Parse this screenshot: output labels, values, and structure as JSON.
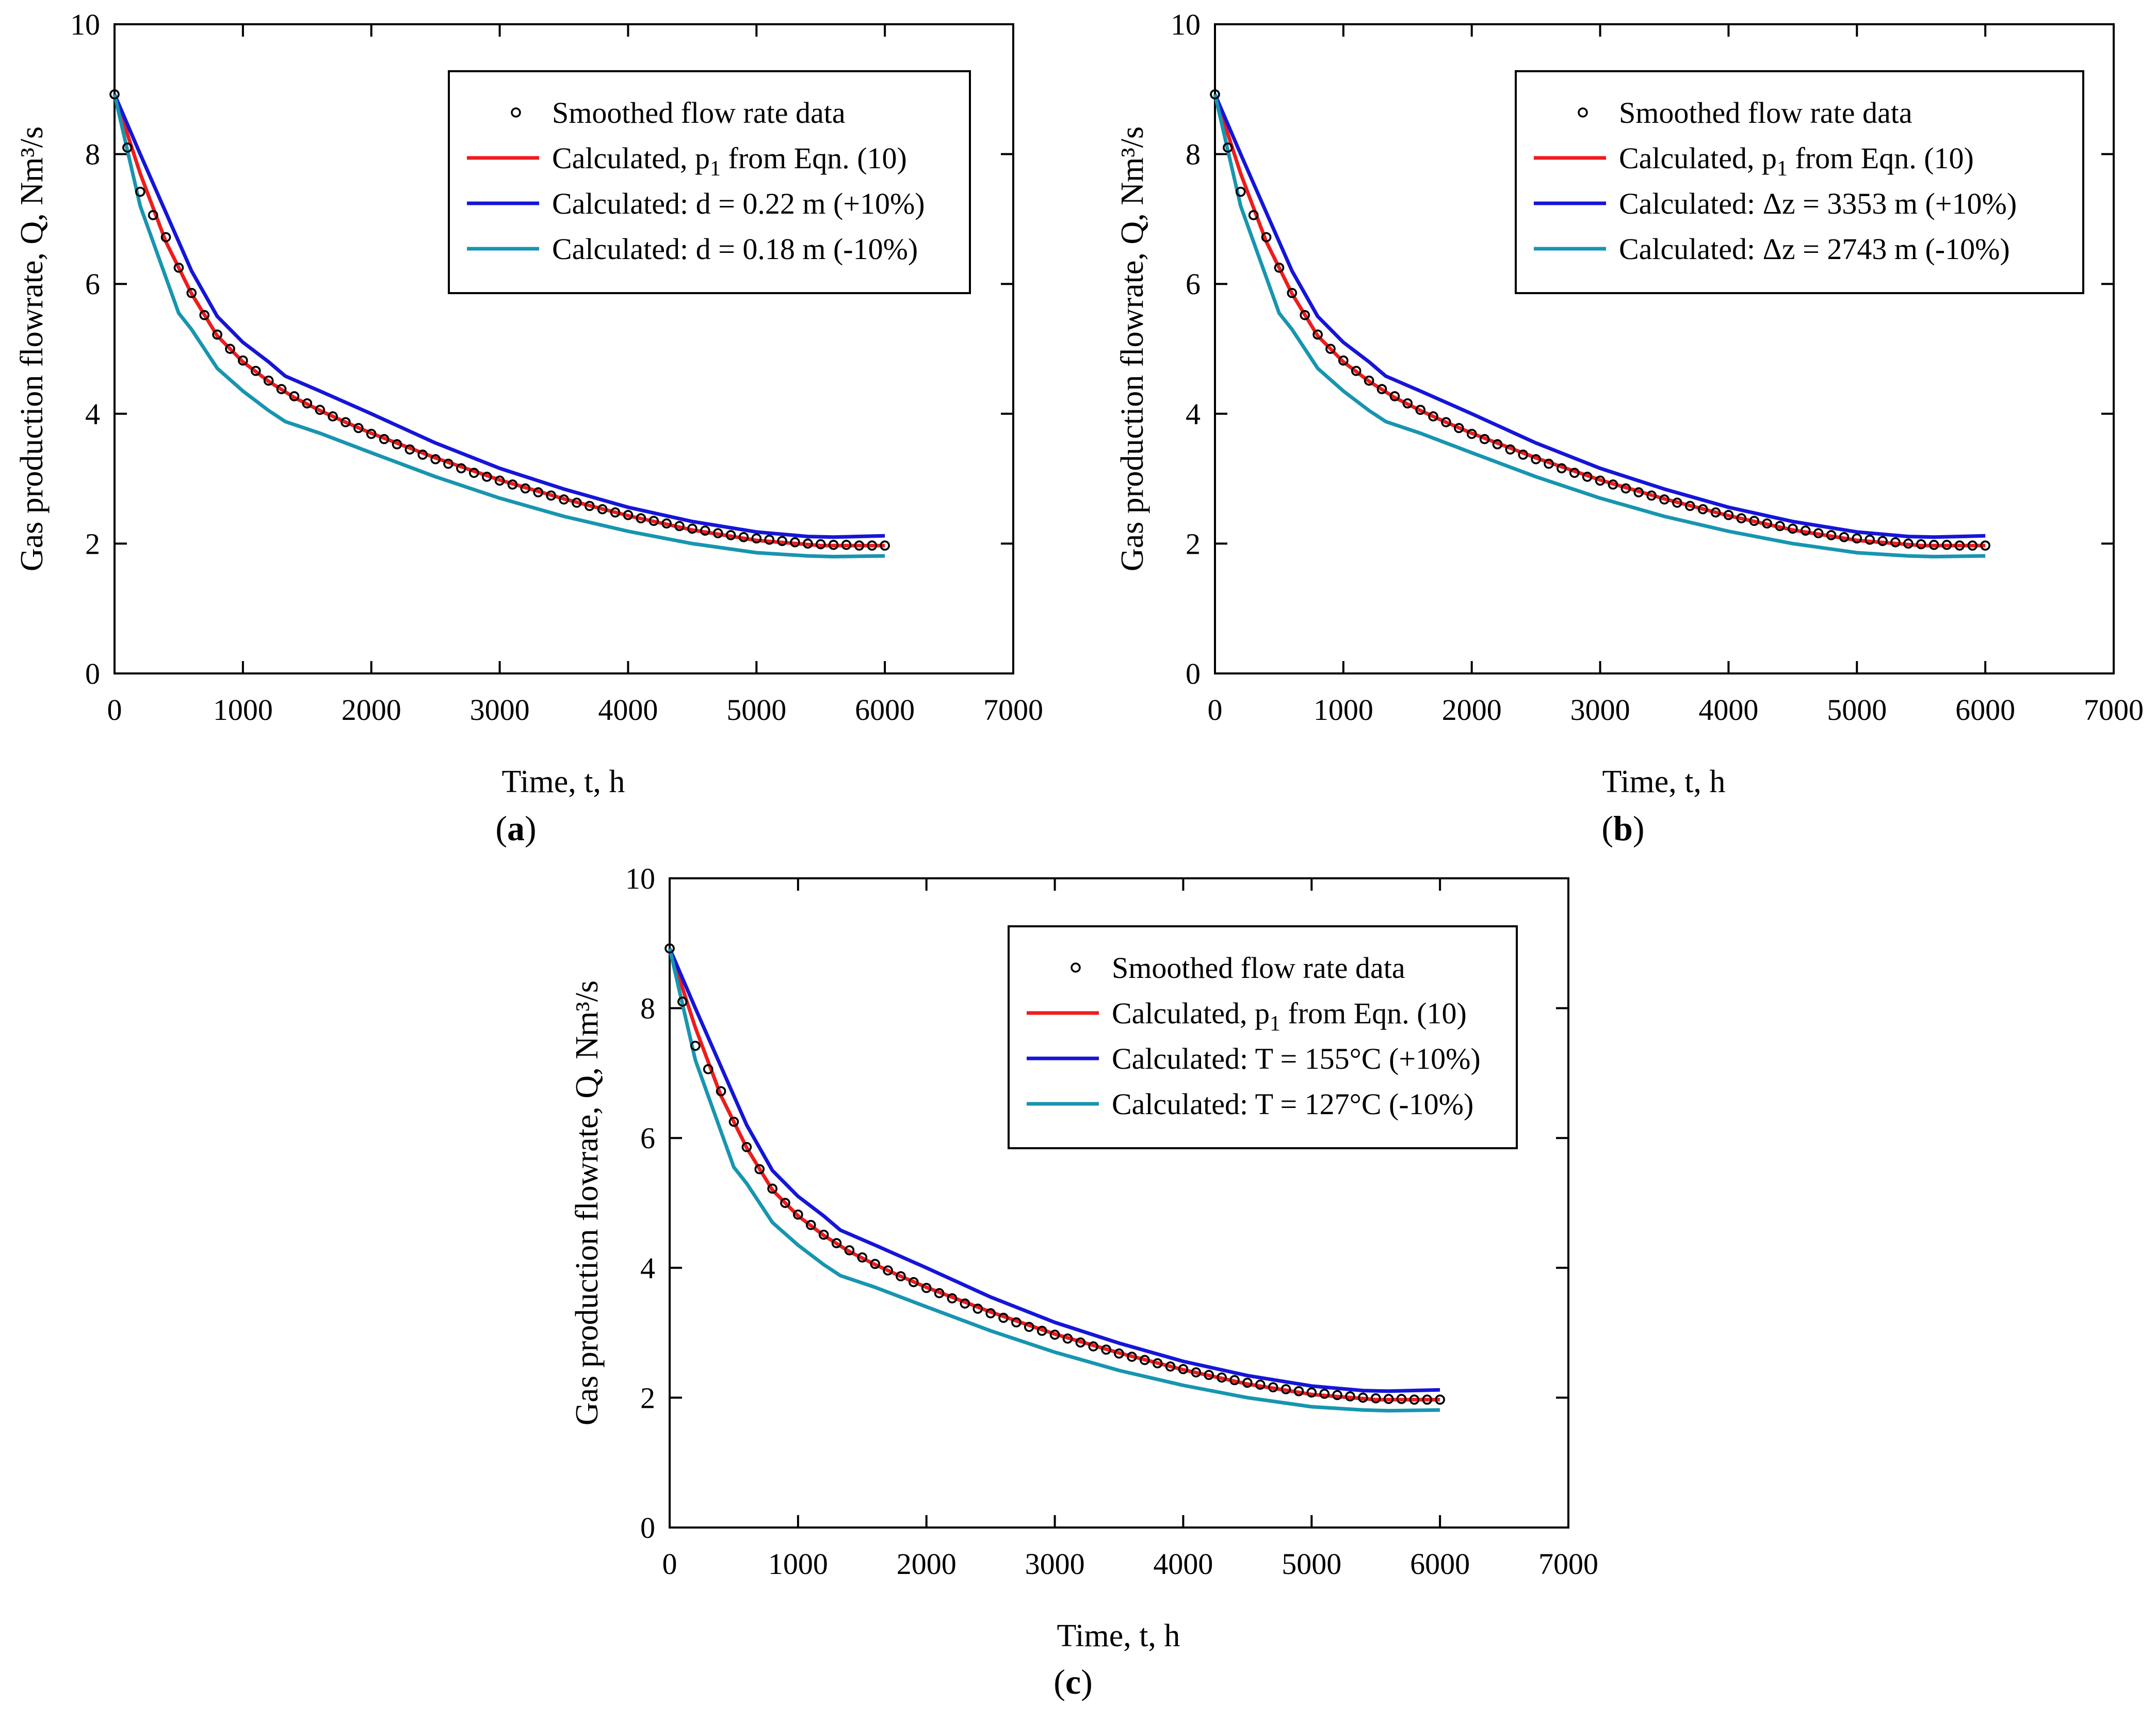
{
  "colors": {
    "data_marker": "#000000",
    "base": "#ee1c1c",
    "plus": "#1515d8",
    "minus": "#1795b0"
  },
  "panels": [
    {
      "id": "a",
      "label_text": "a"
    },
    {
      "id": "b",
      "label_text": "b"
    },
    {
      "id": "c",
      "label_text": "c"
    }
  ],
  "chart_data": [
    {
      "panel": "a",
      "type": "line",
      "xlabel": "Time, t, h",
      "ylabel": "Gas production flowrate, Q, Nm³/s",
      "xlim": [
        0,
        7000
      ],
      "ylim": [
        0,
        10
      ],
      "xticks": [
        0,
        1000,
        2000,
        3000,
        4000,
        5000,
        6000,
        7000
      ],
      "yticks": [
        0,
        2,
        4,
        6,
        8,
        10
      ],
      "legend_position": "top-right",
      "series": [
        {
          "name": "Smoothed flow rate data",
          "style": "markers",
          "color_key": "data_marker",
          "x": [
            0,
            100,
            200,
            300,
            400,
            500,
            600,
            700,
            800,
            900,
            1000,
            1100,
            1200,
            1300,
            1400,
            1500,
            1600,
            1700,
            1800,
            1900,
            2000,
            2100,
            2200,
            2300,
            2400,
            2500,
            2600,
            2700,
            2800,
            2900,
            3000,
            3100,
            3200,
            3300,
            3400,
            3500,
            3600,
            3700,
            3800,
            3900,
            4000,
            4100,
            4200,
            4300,
            4400,
            4500,
            4600,
            4700,
            4800,
            4900,
            5000,
            5100,
            5200,
            5300,
            5400,
            5500,
            5600,
            5700,
            5800,
            5900,
            6000
          ],
          "y": [
            8.92,
            8.1,
            7.42,
            7.06,
            6.72,
            6.25,
            5.86,
            5.52,
            5.22,
            5.0,
            4.82,
            4.66,
            4.51,
            4.38,
            4.27,
            4.16,
            4.06,
            3.96,
            3.87,
            3.78,
            3.69,
            3.61,
            3.53,
            3.45,
            3.37,
            3.3,
            3.23,
            3.16,
            3.09,
            3.03,
            2.97,
            2.91,
            2.85,
            2.79,
            2.74,
            2.68,
            2.63,
            2.58,
            2.53,
            2.48,
            2.44,
            2.39,
            2.35,
            2.31,
            2.27,
            2.23,
            2.2,
            2.16,
            2.13,
            2.1,
            2.08,
            2.06,
            2.04,
            2.02,
            2.0,
            1.99,
            1.98,
            1.98,
            1.97,
            1.97,
            1.97
          ]
        },
        {
          "name": "Calculated, p1 from Eqn. (10)",
          "legend_main": "Calculated, p",
          "legend_sub": "1",
          "legend_tail": " from Eqn. (10)",
          "style": "line",
          "color_key": "base",
          "x": [
            0,
            200,
            400,
            600,
            800,
            1000,
            1200,
            1400,
            1600,
            1800,
            2000,
            2500,
            3000,
            3500,
            4000,
            4500,
            5000,
            5500,
            6000
          ],
          "y": [
            8.92,
            7.7,
            6.65,
            5.85,
            5.2,
            4.8,
            4.5,
            4.25,
            4.05,
            3.87,
            3.7,
            3.32,
            2.98,
            2.69,
            2.43,
            2.21,
            2.05,
            1.97,
            1.97
          ]
        },
        {
          "name": "Calculated: d = 0.22 m (+10%)",
          "style": "line",
          "color_key": "plus",
          "x": [
            0,
            200,
            400,
            600,
            800,
            1000,
            1200,
            1330,
            1600,
            2000,
            2500,
            3000,
            3500,
            4000,
            4500,
            5000,
            5400,
            5600,
            6000
          ],
          "y": [
            8.92,
            8.0,
            7.1,
            6.2,
            5.5,
            5.1,
            4.8,
            4.58,
            4.35,
            4.0,
            3.55,
            3.16,
            2.84,
            2.56,
            2.34,
            2.18,
            2.11,
            2.1,
            2.12
          ]
        },
        {
          "name": "Calculated:  d = 0.18 m (-10%)",
          "style": "line",
          "color_key": "minus",
          "x": [
            0,
            200,
            400,
            500,
            600,
            700,
            800,
            1000,
            1200,
            1330,
            1600,
            2000,
            2500,
            3000,
            3500,
            4000,
            4500,
            5000,
            5400,
            5600,
            6000
          ],
          "y": [
            8.92,
            7.2,
            6.1,
            5.55,
            5.3,
            5.0,
            4.7,
            4.35,
            4.05,
            3.88,
            3.7,
            3.4,
            3.03,
            2.7,
            2.42,
            2.19,
            2.0,
            1.86,
            1.81,
            1.8,
            1.81
          ]
        }
      ]
    },
    {
      "panel": "b",
      "type": "line",
      "xlabel": "Time, t, h",
      "ylabel": "Gas production flowrate, Q, Nm³/s",
      "xlim": [
        0,
        7000
      ],
      "ylim": [
        0,
        10
      ],
      "xticks": [
        0,
        1000,
        2000,
        3000,
        4000,
        5000,
        6000,
        7000
      ],
      "yticks": [
        0,
        2,
        4,
        6,
        8,
        10
      ],
      "legend_position": "top-right",
      "series": [
        {
          "name": "Smoothed flow rate data",
          "style": "markers",
          "color_key": "data_marker",
          "x": [
            0,
            100,
            200,
            300,
            400,
            500,
            600,
            700,
            800,
            900,
            1000,
            1100,
            1200,
            1300,
            1400,
            1500,
            1600,
            1700,
            1800,
            1900,
            2000,
            2100,
            2200,
            2300,
            2400,
            2500,
            2600,
            2700,
            2800,
            2900,
            3000,
            3100,
            3200,
            3300,
            3400,
            3500,
            3600,
            3700,
            3800,
            3900,
            4000,
            4100,
            4200,
            4300,
            4400,
            4500,
            4600,
            4700,
            4800,
            4900,
            5000,
            5100,
            5200,
            5300,
            5400,
            5500,
            5600,
            5700,
            5800,
            5900,
            6000
          ],
          "y": [
            8.92,
            8.1,
            7.42,
            7.06,
            6.72,
            6.25,
            5.86,
            5.52,
            5.22,
            5.0,
            4.82,
            4.66,
            4.51,
            4.38,
            4.27,
            4.16,
            4.06,
            3.96,
            3.87,
            3.78,
            3.69,
            3.61,
            3.53,
            3.45,
            3.37,
            3.3,
            3.23,
            3.16,
            3.09,
            3.03,
            2.97,
            2.91,
            2.85,
            2.79,
            2.74,
            2.68,
            2.63,
            2.58,
            2.53,
            2.48,
            2.44,
            2.39,
            2.35,
            2.31,
            2.27,
            2.23,
            2.2,
            2.16,
            2.13,
            2.1,
            2.08,
            2.06,
            2.04,
            2.02,
            2.0,
            1.99,
            1.98,
            1.98,
            1.97,
            1.97,
            1.97
          ]
        },
        {
          "name": "Calculated, p1 from Eqn. (10)",
          "legend_main": "Calculated, p",
          "legend_sub": "1",
          "legend_tail": " from Eqn. (10)",
          "style": "line",
          "color_key": "base",
          "x": [
            0,
            200,
            400,
            600,
            800,
            1000,
            1200,
            1400,
            1600,
            1800,
            2000,
            2500,
            3000,
            3500,
            4000,
            4500,
            5000,
            5500,
            6000
          ],
          "y": [
            8.92,
            7.7,
            6.65,
            5.85,
            5.2,
            4.8,
            4.5,
            4.25,
            4.05,
            3.87,
            3.7,
            3.32,
            2.98,
            2.69,
            2.43,
            2.21,
            2.05,
            1.97,
            1.97
          ]
        },
        {
          "name": "Calculated:  Δz = 3353 m (+10%)",
          "style": "line",
          "color_key": "plus",
          "x": [
            0,
            200,
            400,
            600,
            800,
            1000,
            1200,
            1330,
            1600,
            2000,
            2500,
            3000,
            3500,
            4000,
            4500,
            5000,
            5400,
            5600,
            6000
          ],
          "y": [
            8.92,
            8.0,
            7.1,
            6.2,
            5.5,
            5.1,
            4.8,
            4.58,
            4.35,
            4.0,
            3.55,
            3.16,
            2.84,
            2.56,
            2.34,
            2.18,
            2.11,
            2.1,
            2.12
          ]
        },
        {
          "name": "Calculated:   Δz = 2743 m (-10%)",
          "style": "line",
          "color_key": "minus",
          "x": [
            0,
            200,
            400,
            500,
            600,
            700,
            800,
            1000,
            1200,
            1330,
            1600,
            2000,
            2500,
            3000,
            3500,
            4000,
            4500,
            5000,
            5400,
            5600,
            6000
          ],
          "y": [
            8.92,
            7.2,
            6.1,
            5.55,
            5.3,
            5.0,
            4.7,
            4.35,
            4.05,
            3.88,
            3.7,
            3.4,
            3.03,
            2.7,
            2.42,
            2.19,
            2.0,
            1.86,
            1.81,
            1.8,
            1.81
          ]
        }
      ]
    },
    {
      "panel": "c",
      "type": "line",
      "xlabel": "Time, t, h",
      "ylabel": "Gas production flowrate, Q, Nm³/s",
      "xlim": [
        0,
        7000
      ],
      "ylim": [
        0,
        10
      ],
      "xticks": [
        0,
        1000,
        2000,
        3000,
        4000,
        5000,
        6000,
        7000
      ],
      "yticks": [
        0,
        2,
        4,
        6,
        8,
        10
      ],
      "legend_position": "top-right",
      "series": [
        {
          "name": "Smoothed flow rate data",
          "style": "markers",
          "color_key": "data_marker",
          "x": [
            0,
            100,
            200,
            300,
            400,
            500,
            600,
            700,
            800,
            900,
            1000,
            1100,
            1200,
            1300,
            1400,
            1500,
            1600,
            1700,
            1800,
            1900,
            2000,
            2100,
            2200,
            2300,
            2400,
            2500,
            2600,
            2700,
            2800,
            2900,
            3000,
            3100,
            3200,
            3300,
            3400,
            3500,
            3600,
            3700,
            3800,
            3900,
            4000,
            4100,
            4200,
            4300,
            4400,
            4500,
            4600,
            4700,
            4800,
            4900,
            5000,
            5100,
            5200,
            5300,
            5400,
            5500,
            5600,
            5700,
            5800,
            5900,
            6000
          ],
          "y": [
            8.92,
            8.1,
            7.42,
            7.06,
            6.72,
            6.25,
            5.86,
            5.52,
            5.22,
            5.0,
            4.82,
            4.66,
            4.51,
            4.38,
            4.27,
            4.16,
            4.06,
            3.96,
            3.87,
            3.78,
            3.69,
            3.61,
            3.53,
            3.45,
            3.37,
            3.3,
            3.23,
            3.16,
            3.09,
            3.03,
            2.97,
            2.91,
            2.85,
            2.79,
            2.74,
            2.68,
            2.63,
            2.58,
            2.53,
            2.48,
            2.44,
            2.39,
            2.35,
            2.31,
            2.27,
            2.23,
            2.2,
            2.16,
            2.13,
            2.1,
            2.08,
            2.06,
            2.04,
            2.02,
            2.0,
            1.99,
            1.98,
            1.98,
            1.97,
            1.97,
            1.97
          ]
        },
        {
          "name": "Calculated, p1 from Eqn. (10)",
          "legend_main": "Calculated, p",
          "legend_sub": "1",
          "legend_tail": " from Eqn. (10)",
          "style": "line",
          "color_key": "base",
          "x": [
            0,
            200,
            400,
            600,
            800,
            1000,
            1200,
            1400,
            1600,
            1800,
            2000,
            2500,
            3000,
            3500,
            4000,
            4500,
            5000,
            5500,
            6000
          ],
          "y": [
            8.92,
            7.7,
            6.65,
            5.85,
            5.2,
            4.8,
            4.5,
            4.25,
            4.05,
            3.87,
            3.7,
            3.32,
            2.98,
            2.69,
            2.43,
            2.21,
            2.05,
            1.97,
            1.97
          ]
        },
        {
          "name": "Calculated: T = 155°C (+10%)",
          "style": "line",
          "color_key": "plus",
          "x": [
            0,
            200,
            400,
            600,
            800,
            1000,
            1200,
            1330,
            1600,
            2000,
            2500,
            3000,
            3500,
            4000,
            4500,
            5000,
            5400,
            5600,
            6000
          ],
          "y": [
            8.92,
            8.0,
            7.1,
            6.2,
            5.5,
            5.1,
            4.8,
            4.58,
            4.35,
            4.0,
            3.55,
            3.16,
            2.84,
            2.56,
            2.34,
            2.18,
            2.11,
            2.1,
            2.12
          ]
        },
        {
          "name": "Calculated:  T = 127°C (-10%)",
          "style": "line",
          "color_key": "minus",
          "x": [
            0,
            200,
            400,
            500,
            600,
            700,
            800,
            1000,
            1200,
            1330,
            1600,
            2000,
            2500,
            3000,
            3500,
            4000,
            4500,
            5000,
            5400,
            5600,
            6000
          ],
          "y": [
            8.92,
            7.2,
            6.1,
            5.55,
            5.3,
            5.0,
            4.7,
            4.35,
            4.05,
            3.88,
            3.7,
            3.4,
            3.03,
            2.7,
            2.42,
            2.19,
            2.0,
            1.86,
            1.81,
            1.8,
            1.81
          ]
        }
      ]
    }
  ]
}
